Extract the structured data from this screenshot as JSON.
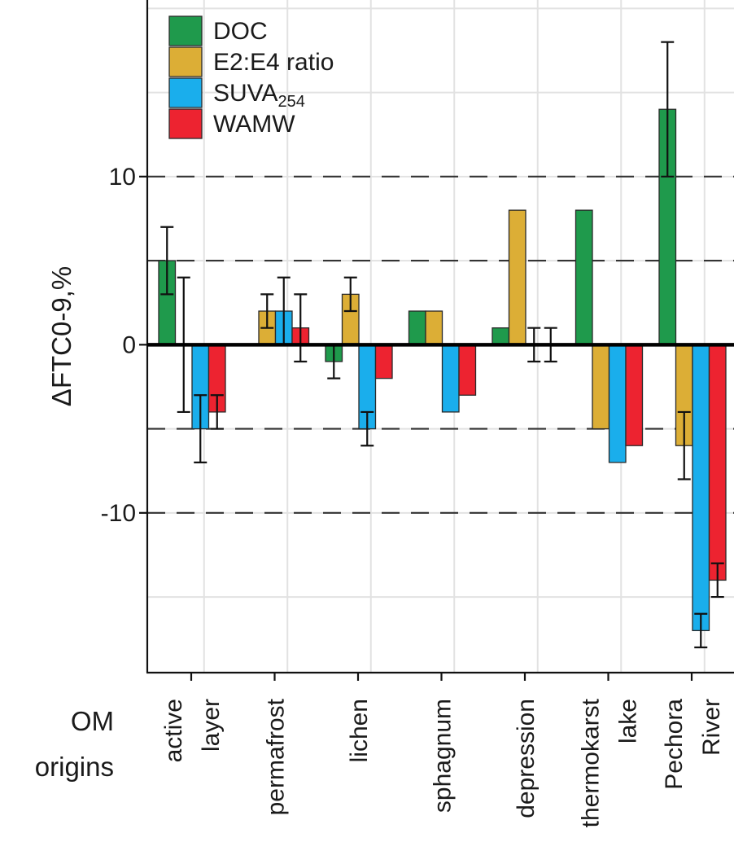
{
  "chart_data": {
    "type": "bar",
    "title": "",
    "xlabel": "OM origins",
    "ylabel": "ΔFTC0-9,%",
    "ylim": [
      -19.5,
      20.5
    ],
    "yticks": [
      -10,
      0,
      10
    ],
    "grid": true,
    "dashed_reference_lines": [
      -10,
      -5,
      5,
      10
    ],
    "legend_position": "top-left",
    "category_labels": [
      [
        "active",
        "layer"
      ],
      [
        "permafrost"
      ],
      [
        "lichen"
      ],
      [
        "sphagnum"
      ],
      [
        "depression"
      ],
      [
        "thermokarst",
        "lake"
      ],
      [
        "Pechora",
        "River"
      ]
    ],
    "categories": [
      "active layer",
      "permafrost",
      "lichen",
      "sphagnum",
      "depression",
      "thermokarst lake",
      "Pechora River"
    ],
    "series": [
      {
        "name": "DOC",
        "name_sub": "",
        "color": "#1f9a4c",
        "values": [
          5,
          0,
          -1,
          2,
          1,
          8,
          14
        ],
        "errors": [
          2,
          0,
          1,
          0,
          0,
          0,
          4
        ]
      },
      {
        "name": "E2:E4 ratio",
        "name_sub": "",
        "color": "#dcae36",
        "values": [
          0,
          2,
          3,
          2,
          8,
          -5,
          -6
        ],
        "errors": [
          0,
          1,
          1,
          0,
          0,
          0,
          2
        ]
      },
      {
        "name": "SUVA",
        "name_sub": "254",
        "color": "#1aaeec",
        "values": [
          -5,
          2,
          -5,
          -4,
          0,
          -7,
          -17
        ],
        "errors": [
          2,
          2,
          1,
          0,
          1,
          0,
          1
        ]
      },
      {
        "name": "WAMW",
        "name_sub": "",
        "color": "#ed2330",
        "values": [
          -4,
          1,
          -2,
          -3,
          0,
          -6,
          -14
        ],
        "errors": [
          1,
          2,
          0,
          0,
          1,
          0,
          1
        ]
      }
    ],
    "extra_errorbars": [
      {
        "category_index": 0,
        "series_index": 1,
        "value": 0,
        "error": 4
      }
    ]
  }
}
